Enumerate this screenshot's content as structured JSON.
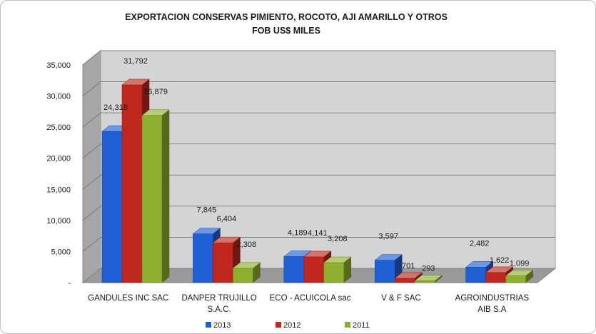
{
  "chart_data": {
    "type": "bar",
    "title": "EXPORTACION  CONSERVAS PIMIENTO, ROCOTO, AJI AMARILLO Y OTROS",
    "subtitle": "FOB US$ MILES",
    "xlabel": "",
    "ylabel": "",
    "ylim": [
      0,
      35000
    ],
    "y_ticks": [
      {
        "value": 0,
        "label": "-"
      },
      {
        "value": 5000,
        "label": "5,000"
      },
      {
        "value": 10000,
        "label": "10,000"
      },
      {
        "value": 15000,
        "label": "15,000"
      },
      {
        "value": 20000,
        "label": "20,000"
      },
      {
        "value": 25000,
        "label": "25,000"
      },
      {
        "value": 30000,
        "label": "30,000"
      },
      {
        "value": 35000,
        "label": "35,000"
      }
    ],
    "categories": [
      [
        "GANDULES INC SAC"
      ],
      [
        "DANPER TRUJILLO",
        "S.A.C."
      ],
      [
        "ECO - ACUICOLA sac"
      ],
      [
        "V & F SAC"
      ],
      [
        "AGROINDUSTRIAS",
        "AIB S.A"
      ]
    ],
    "series": [
      {
        "name": "2013",
        "color": "#1f5fd6",
        "values": [
          24318,
          7845,
          4189,
          3597,
          2482
        ],
        "labels": [
          "24,318",
          "7,845",
          "4,189",
          "3,597",
          "2,482"
        ]
      },
      {
        "name": "2012",
        "color": "#c0271f",
        "values": [
          31792,
          6404,
          4141,
          701,
          1622
        ],
        "labels": [
          "31,792",
          "6,404",
          "4,141",
          "701",
          "1,622"
        ]
      },
      {
        "name": "2011",
        "color": "#8fb02e",
        "values": [
          26879,
          2308,
          3208,
          293,
          1099
        ],
        "labels": [
          "26,879",
          "2,308",
          "3,208",
          "293",
          "1,099"
        ]
      }
    ],
    "grid": true,
    "legend_position": "bottom",
    "style": "3d-clustered-column"
  }
}
